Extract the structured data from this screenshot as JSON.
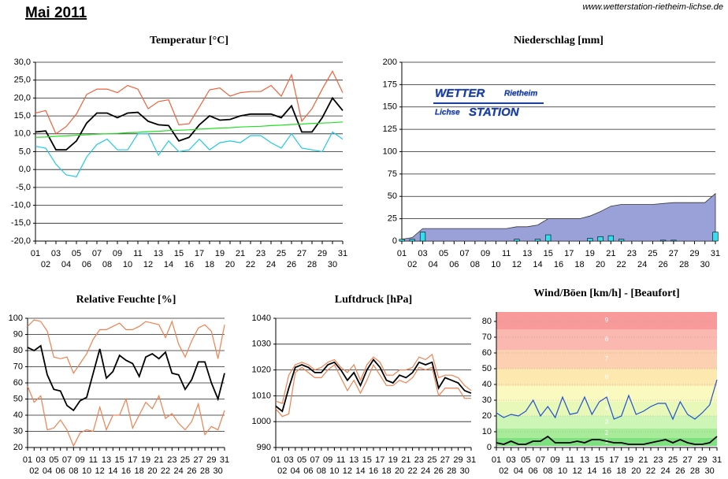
{
  "header": {
    "title": "Mai 2011",
    "url": "www.wetterstation-rietheim-lichse.de"
  },
  "chart_data": [
    {
      "type": "line",
      "title": "Temperatur [°C]",
      "categories": [
        "01",
        "02",
        "03",
        "04",
        "05",
        "06",
        "07",
        "08",
        "09",
        "10",
        "11",
        "12",
        "13",
        "14",
        "15",
        "16",
        "17",
        "18",
        "19",
        "20",
        "21",
        "22",
        "23",
        "24",
        "25",
        "26",
        "27",
        "28",
        "29",
        "30",
        "31"
      ],
      "ylim": [
        -20,
        30
      ],
      "yticks": [
        {
          "value": -20,
          "label": "-20,0"
        },
        {
          "value": -15,
          "label": "-15,0"
        },
        {
          "value": -10,
          "label": "-10,0"
        },
        {
          "value": -5,
          "label": "-5,0"
        },
        {
          "value": 0,
          "label": "0,0"
        },
        {
          "value": 5,
          "label": "5,0"
        },
        {
          "value": 10,
          "label": "10,0"
        },
        {
          "value": 15,
          "label": "15,0"
        },
        {
          "value": 20,
          "label": "20,0"
        },
        {
          "value": 25,
          "label": "25,0"
        },
        {
          "value": 30,
          "label": "30,0"
        }
      ],
      "grid": true,
      "series": [
        {
          "color": "#f0603a",
          "values": [
            15.8,
            16.5,
            10,
            12,
            15.5,
            21,
            22.5,
            22.5,
            21.5,
            23.5,
            22.5,
            17,
            19,
            19.5,
            12.5,
            12.8,
            17.5,
            22.3,
            22.8,
            20.5,
            21.5,
            21.8,
            21.8,
            23.5,
            20.5,
            26.5,
            13.5,
            17,
            22.5,
            27.5,
            21.5
          ]
        },
        {
          "color": "#20c8e8",
          "values": [
            6.5,
            6,
            1.5,
            -1.5,
            -2,
            3.5,
            7,
            8.5,
            5.5,
            5.5,
            10,
            10,
            4,
            8,
            5,
            5.5,
            8.5,
            5.5,
            7.5,
            8,
            7.5,
            9.5,
            9.5,
            7.5,
            6,
            10,
            6,
            5.5,
            5,
            10.5,
            8.5
          ]
        },
        {
          "color": "#000000",
          "values": [
            10.5,
            10.8,
            5.5,
            5.5,
            8,
            13,
            15.8,
            15.8,
            14.5,
            15.8,
            16,
            13.5,
            12.5,
            12.3,
            8,
            9,
            12.5,
            15,
            13.8,
            14,
            15,
            15.5,
            15.5,
            15.5,
            14.5,
            17.8,
            10.5,
            10.5,
            14.5,
            20,
            16.5
          ]
        },
        {
          "color": "#20e020",
          "values": [
            9.0,
            9.1,
            9.3,
            9.4,
            9.6,
            9.7,
            9.9,
            10.0,
            10.1,
            10.3,
            10.4,
            10.6,
            10.7,
            10.9,
            11.0,
            11.1,
            11.3,
            11.4,
            11.6,
            11.7,
            11.9,
            12.0,
            12.1,
            12.3,
            12.4,
            12.6,
            12.7,
            12.9,
            13.0,
            13.1,
            13.3
          ]
        }
      ]
    },
    {
      "type": "bar",
      "title": "Niederschlag [mm]",
      "categories": [
        "01",
        "02",
        "03",
        "04",
        "05",
        "06",
        "07",
        "08",
        "09",
        "10",
        "11",
        "12",
        "13",
        "14",
        "15",
        "16",
        "17",
        "18",
        "19",
        "20",
        "21",
        "22",
        "23",
        "24",
        "25",
        "26",
        "27",
        "28",
        "29",
        "30",
        "31"
      ],
      "ylim": [
        0,
        200
      ],
      "yticks": [
        0,
        25,
        50,
        75,
        100,
        125,
        150,
        175,
        200
      ],
      "grid": true,
      "values": [
        2,
        2,
        10,
        0,
        0,
        0,
        0,
        0,
        0,
        0,
        0,
        2,
        0,
        2,
        7,
        0,
        0,
        0,
        3,
        5,
        6,
        2,
        0,
        0,
        0,
        1,
        1,
        0,
        0,
        0,
        10
      ],
      "color": "#30e0f0",
      "cumulative": true,
      "cumulative_color": "#9aa0d8",
      "annotations": [
        "WETTER",
        "Rietheim",
        "Lichse",
        "STATION"
      ]
    },
    {
      "type": "line",
      "title": "Relative Feuchte [%]",
      "categories": [
        "01",
        "02",
        "03",
        "04",
        "05",
        "06",
        "07",
        "08",
        "09",
        "10",
        "11",
        "12",
        "13",
        "14",
        "15",
        "16",
        "17",
        "18",
        "19",
        "20",
        "21",
        "22",
        "23",
        "24",
        "25",
        "26",
        "27",
        "28",
        "29",
        "30",
        "31"
      ],
      "ylim": [
        20,
        100
      ],
      "yticks": [
        20,
        30,
        40,
        50,
        60,
        70,
        80,
        90,
        100
      ],
      "grid": true,
      "series": [
        {
          "color": "#f08050",
          "values": [
            95,
            99,
            98,
            92,
            76,
            75,
            76,
            66,
            72,
            78,
            87,
            93,
            93,
            95,
            97,
            93,
            93,
            95,
            98,
            97,
            96,
            88,
            98,
            84,
            76,
            86,
            94,
            96,
            92,
            75,
            96
          ]
        },
        {
          "color": "#f08050",
          "values": [
            58,
            48,
            52,
            31,
            32,
            37,
            31,
            21,
            29,
            31,
            30,
            45,
            31,
            40,
            40,
            50,
            32,
            40,
            48,
            44,
            52,
            38,
            41,
            35,
            31,
            36,
            47,
            28,
            33,
            31,
            43
          ]
        },
        {
          "color": "#000000",
          "values": [
            82,
            80,
            83,
            65,
            56,
            55,
            46,
            43,
            49,
            51,
            66,
            81,
            63,
            67,
            77,
            74,
            72,
            64,
            76,
            78,
            75,
            79,
            66,
            65,
            56,
            62,
            73,
            73,
            60,
            50,
            66
          ]
        }
      ]
    },
    {
      "type": "line",
      "title": "Luftdruck [hPa]",
      "categories": [
        "01",
        "02",
        "03",
        "04",
        "05",
        "06",
        "07",
        "08",
        "09",
        "10",
        "11",
        "12",
        "13",
        "14",
        "15",
        "16",
        "17",
        "18",
        "19",
        "20",
        "21",
        "22",
        "23",
        "24",
        "25",
        "26",
        "27",
        "28",
        "29",
        "30",
        "31"
      ],
      "ylim": [
        990,
        1040
      ],
      "yticks": [
        990,
        1000,
        1010,
        1020,
        1030,
        1040
      ],
      "grid": true,
      "series": [
        {
          "color": "#f08050",
          "values": [
            1008,
            1007,
            1018,
            1022,
            1023,
            1022,
            1020,
            1021,
            1023,
            1024,
            1021,
            1019,
            1022,
            1016,
            1022,
            1025,
            1023,
            1018,
            1018,
            1020,
            1020,
            1021,
            1025,
            1024,
            1026,
            1017,
            1018,
            1018,
            1017,
            1014,
            1012
          ]
        },
        {
          "color": "#f08050",
          "values": [
            1005,
            1002,
            1003,
            1019,
            1021,
            1019,
            1017,
            1017,
            1020,
            1022,
            1017,
            1012,
            1016,
            1011,
            1016,
            1022,
            1018,
            1014,
            1014,
            1016,
            1015,
            1017,
            1021,
            1020,
            1021,
            1010,
            1013,
            1013,
            1013,
            1009,
            1009
          ]
        },
        {
          "color": "#000000",
          "values": [
            1006,
            1004,
            1013,
            1021,
            1022,
            1021,
            1019,
            1019,
            1022,
            1023,
            1020,
            1016,
            1019,
            1014,
            1020,
            1024,
            1021,
            1016,
            1015,
            1018,
            1017,
            1019,
            1023,
            1022,
            1023,
            1013,
            1017,
            1016,
            1015,
            1012,
            1011
          ]
        }
      ]
    },
    {
      "type": "line",
      "title": "Wind/Böen [km/h] - [Beaufort]",
      "categories": [
        "01",
        "02",
        "03",
        "04",
        "05",
        "06",
        "07",
        "08",
        "09",
        "10",
        "11",
        "12",
        "13",
        "14",
        "15",
        "16",
        "17",
        "18",
        "19",
        "20",
        "21",
        "22",
        "23",
        "24",
        "25",
        "26",
        "27",
        "28",
        "29",
        "30",
        "31"
      ],
      "ylim": [
        0,
        86
      ],
      "yticks": [
        0,
        10,
        20,
        30,
        40,
        50,
        60,
        70,
        80
      ],
      "grid": false,
      "bands": [
        {
          "label": "1",
          "from": 1,
          "to": 6,
          "color": "#7fe07f"
        },
        {
          "label": "2",
          "from": 6,
          "to": 12,
          "color": "#a8ec9a"
        },
        {
          "label": "3",
          "from": 12,
          "to": 20,
          "color": "#cdf5b5"
        },
        {
          "label": "4",
          "from": 20,
          "to": 29,
          "color": "#e8f8b8"
        },
        {
          "label": "5",
          "from": 29,
          "to": 39,
          "color": "#fafac0"
        },
        {
          "label": "6",
          "from": 39,
          "to": 50,
          "color": "#fde8b0"
        },
        {
          "label": "7",
          "from": 50,
          "to": 62,
          "color": "#fcd0b0"
        },
        {
          "label": "8",
          "from": 62,
          "to": 75,
          "color": "#fbb8b0"
        },
        {
          "label": "9",
          "from": 75,
          "to": 86,
          "color": "#f89a9a"
        }
      ],
      "series": [
        {
          "color": "#2050d0",
          "values": [
            22,
            19,
            21,
            20,
            23,
            30,
            20,
            26,
            19,
            32,
            21,
            22,
            32,
            21,
            29,
            32,
            18,
            20,
            33,
            21,
            23,
            26,
            28,
            28,
            18,
            29,
            21,
            18,
            22,
            27,
            43
          ]
        },
        {
          "color": "#000000",
          "values": [
            3,
            2,
            4,
            2,
            2,
            4,
            4,
            7,
            3,
            3,
            3,
            4,
            3,
            5,
            5,
            4,
            3,
            3,
            2,
            2,
            2,
            3,
            4,
            5,
            3,
            5,
            3,
            2,
            2,
            3,
            7
          ]
        }
      ]
    }
  ]
}
